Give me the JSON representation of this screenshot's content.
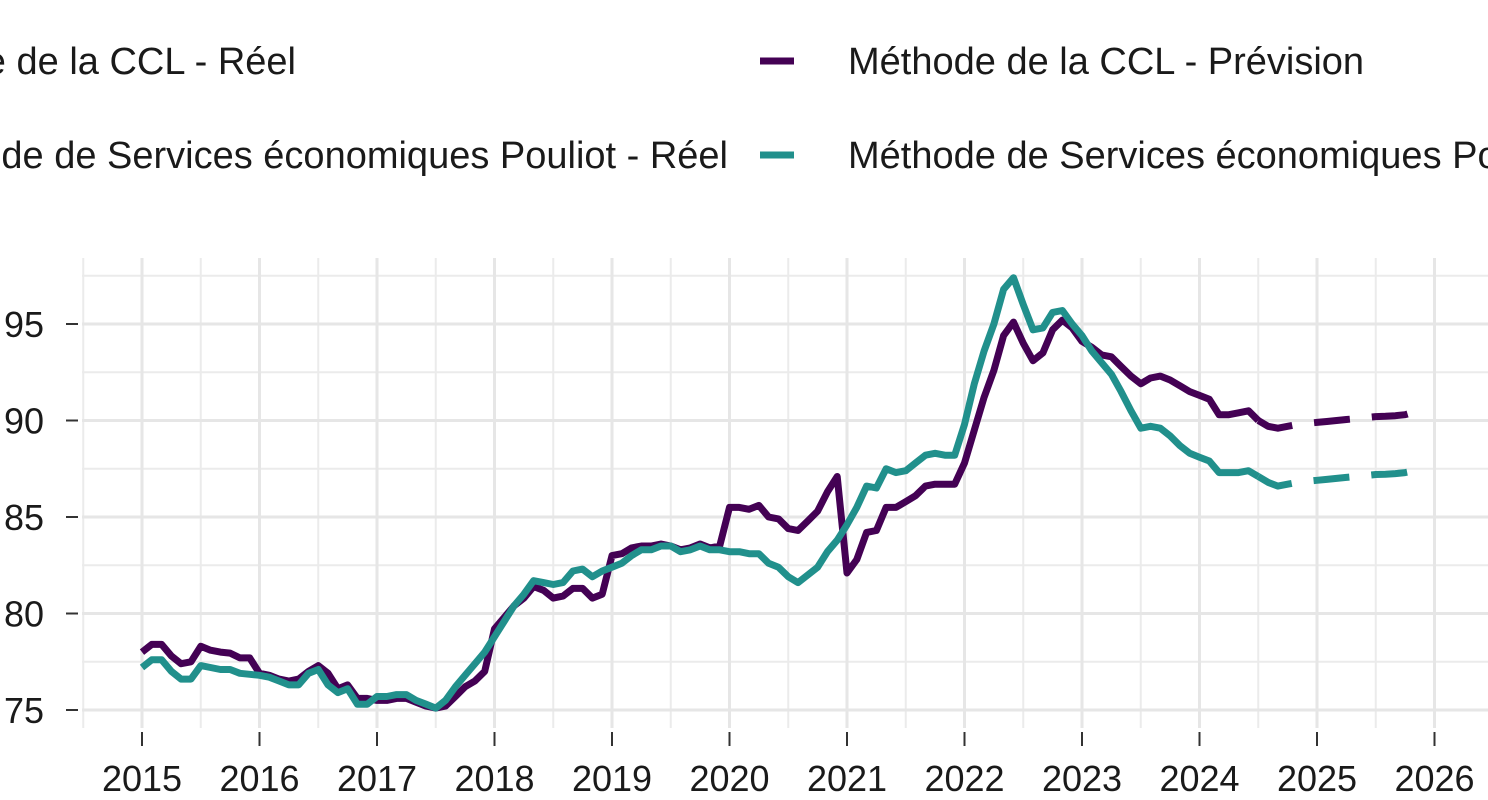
{
  "chart_data": {
    "type": "line",
    "title": "",
    "xlabel": "",
    "ylabel": "",
    "xlim": [
      2014.4,
      2026.4
    ],
    "ylim": [
      74.2,
      98.5
    ],
    "x_ticks": [
      2015,
      2016,
      2017,
      2018,
      2019,
      2020,
      2021,
      2022,
      2023,
      2024,
      2025,
      2026
    ],
    "x_tick_labels": [
      "2015",
      "2016",
      "2017",
      "2018",
      "2019",
      "2020",
      "2021",
      "2022",
      "2023",
      "2024",
      "2025",
      "2026"
    ],
    "y_ticks": [
      75,
      80,
      85,
      90,
      95
    ],
    "y_tick_labels": [
      "75",
      "80",
      "85",
      "90",
      "95"
    ],
    "grid": true,
    "legend_position": "top",
    "legend": [
      {
        "label": "Méthode de la CCL - Réel",
        "series": "ccl_reel"
      },
      {
        "label": "Méthode de la CCL - Prévision",
        "series": "ccl_prev"
      },
      {
        "label": "Méthode de Services économiques Pouliot - Réel",
        "series": "sep_reel"
      },
      {
        "label": "Méthode de Services économiques Pouliot - Prévision",
        "series": "sep_prev"
      }
    ],
    "series": [
      {
        "id": "ccl_reel",
        "name": "Méthode de la CCL - Réel",
        "color": "#440154",
        "dash": false,
        "points": [
          [
            2015.0,
            78.0
          ],
          [
            2015.083,
            78.4
          ],
          [
            2015.167,
            78.4
          ],
          [
            2015.25,
            77.8
          ],
          [
            2015.333,
            77.4
          ],
          [
            2015.417,
            77.5
          ],
          [
            2015.5,
            78.3
          ],
          [
            2015.583,
            78.1
          ],
          [
            2015.667,
            78.0
          ],
          [
            2015.75,
            77.95
          ],
          [
            2015.833,
            77.7
          ],
          [
            2015.917,
            77.7
          ],
          [
            2016.0,
            76.9
          ],
          [
            2016.083,
            76.8
          ],
          [
            2016.167,
            76.6
          ],
          [
            2016.25,
            76.5
          ],
          [
            2016.333,
            76.6
          ],
          [
            2016.417,
            77.0
          ],
          [
            2016.5,
            77.3
          ],
          [
            2016.583,
            76.9
          ],
          [
            2016.667,
            76.1
          ],
          [
            2016.75,
            76.3
          ],
          [
            2016.833,
            75.6
          ],
          [
            2016.917,
            75.6
          ],
          [
            2017.0,
            75.5
          ],
          [
            2017.083,
            75.5
          ],
          [
            2017.167,
            75.6
          ],
          [
            2017.25,
            75.6
          ],
          [
            2017.333,
            75.4
          ],
          [
            2017.417,
            75.2
          ],
          [
            2017.5,
            75.1
          ],
          [
            2017.583,
            75.2
          ],
          [
            2017.667,
            75.7
          ],
          [
            2017.75,
            76.2
          ],
          [
            2017.833,
            76.5
          ],
          [
            2017.917,
            77.0
          ],
          [
            2018.0,
            79.2
          ],
          [
            2018.083,
            79.8
          ],
          [
            2018.167,
            80.4
          ],
          [
            2018.25,
            80.8
          ],
          [
            2018.333,
            81.4
          ],
          [
            2018.417,
            81.2
          ],
          [
            2018.5,
            80.8
          ],
          [
            2018.583,
            80.9
          ],
          [
            2018.667,
            81.3
          ],
          [
            2018.75,
            81.3
          ],
          [
            2018.833,
            80.8
          ],
          [
            2018.917,
            81.0
          ],
          [
            2019.0,
            83.0
          ],
          [
            2019.083,
            83.1
          ],
          [
            2019.167,
            83.4
          ],
          [
            2019.25,
            83.5
          ],
          [
            2019.333,
            83.5
          ],
          [
            2019.417,
            83.6
          ],
          [
            2019.5,
            83.5
          ],
          [
            2019.583,
            83.3
          ],
          [
            2019.667,
            83.4
          ],
          [
            2019.75,
            83.6
          ],
          [
            2019.833,
            83.4
          ],
          [
            2019.917,
            83.5
          ],
          [
            2020.0,
            85.5
          ],
          [
            2020.083,
            85.5
          ],
          [
            2020.167,
            85.4
          ],
          [
            2020.25,
            85.6
          ],
          [
            2020.333,
            85.0
          ],
          [
            2020.417,
            84.9
          ],
          [
            2020.5,
            84.4
          ],
          [
            2020.583,
            84.3
          ],
          [
            2020.667,
            84.8
          ],
          [
            2020.75,
            85.3
          ],
          [
            2020.833,
            86.3
          ],
          [
            2020.917,
            87.1
          ],
          [
            2021.0,
            82.1
          ],
          [
            2021.083,
            82.8
          ],
          [
            2021.167,
            84.2
          ],
          [
            2021.25,
            84.3
          ],
          [
            2021.333,
            85.5
          ],
          [
            2021.417,
            85.5
          ],
          [
            2021.5,
            85.8
          ],
          [
            2021.583,
            86.1
          ],
          [
            2021.667,
            86.6
          ],
          [
            2021.75,
            86.7
          ],
          [
            2021.833,
            86.7
          ],
          [
            2021.917,
            86.7
          ],
          [
            2022.0,
            87.8
          ],
          [
            2022.083,
            89.5
          ],
          [
            2022.167,
            91.2
          ],
          [
            2022.25,
            92.6
          ],
          [
            2022.333,
            94.4
          ],
          [
            2022.417,
            95.1
          ],
          [
            2022.5,
            94.0
          ],
          [
            2022.583,
            93.1
          ],
          [
            2022.667,
            93.5
          ],
          [
            2022.75,
            94.7
          ],
          [
            2022.833,
            95.2
          ],
          [
            2022.917,
            94.8
          ],
          [
            2023.0,
            94.1
          ],
          [
            2023.083,
            93.8
          ],
          [
            2023.167,
            93.4
          ],
          [
            2023.25,
            93.3
          ],
          [
            2023.333,
            92.8
          ],
          [
            2023.417,
            92.3
          ],
          [
            2023.5,
            91.9
          ],
          [
            2023.583,
            92.2
          ],
          [
            2023.667,
            92.3
          ],
          [
            2023.75,
            92.1
          ],
          [
            2023.833,
            91.8
          ],
          [
            2023.917,
            91.5
          ],
          [
            2024.0,
            91.3
          ],
          [
            2024.083,
            91.1
          ],
          [
            2024.167,
            90.3
          ],
          [
            2024.25,
            90.3
          ],
          [
            2024.333,
            90.4
          ],
          [
            2024.417,
            90.5
          ],
          [
            2024.5,
            90.0
          ]
        ]
      },
      {
        "id": "ccl_prev",
        "name": "Méthode de la CCL - Prévision",
        "color": "#440154",
        "dash": true,
        "points": [
          [
            2024.5,
            90.0
          ],
          [
            2024.583,
            89.7
          ],
          [
            2024.667,
            89.6
          ],
          [
            2024.75,
            89.7
          ],
          [
            2024.833,
            89.8
          ],
          [
            2024.917,
            89.85
          ],
          [
            2025.0,
            89.9
          ],
          [
            2025.083,
            89.95
          ],
          [
            2025.167,
            90.0
          ],
          [
            2025.25,
            90.05
          ],
          [
            2025.333,
            90.1
          ],
          [
            2025.417,
            90.15
          ],
          [
            2025.5,
            90.2
          ],
          [
            2025.583,
            90.22
          ],
          [
            2025.667,
            90.25
          ],
          [
            2025.75,
            90.3
          ],
          [
            2025.833,
            90.45
          ],
          [
            2025.917,
            90.6
          ]
        ]
      },
      {
        "id": "sep_reel",
        "name": "Méthode de Services économiques Pouliot - Réel",
        "color": "#21908C",
        "dash": false,
        "points": [
          [
            2015.0,
            77.2
          ],
          [
            2015.083,
            77.6
          ],
          [
            2015.167,
            77.6
          ],
          [
            2015.25,
            77.0
          ],
          [
            2015.333,
            76.6
          ],
          [
            2015.417,
            76.6
          ],
          [
            2015.5,
            77.3
          ],
          [
            2015.583,
            77.2
          ],
          [
            2015.667,
            77.1
          ],
          [
            2015.75,
            77.1
          ],
          [
            2015.833,
            76.9
          ],
          [
            2015.917,
            76.85
          ],
          [
            2016.0,
            76.8
          ],
          [
            2016.083,
            76.7
          ],
          [
            2016.167,
            76.5
          ],
          [
            2016.25,
            76.3
          ],
          [
            2016.333,
            76.3
          ],
          [
            2016.417,
            76.9
          ],
          [
            2016.5,
            77.1
          ],
          [
            2016.583,
            76.3
          ],
          [
            2016.667,
            75.9
          ],
          [
            2016.75,
            76.1
          ],
          [
            2016.833,
            75.3
          ],
          [
            2016.917,
            75.3
          ],
          [
            2017.0,
            75.7
          ],
          [
            2017.083,
            75.7
          ],
          [
            2017.167,
            75.8
          ],
          [
            2017.25,
            75.8
          ],
          [
            2017.333,
            75.5
          ],
          [
            2017.417,
            75.3
          ],
          [
            2017.5,
            75.1
          ],
          [
            2017.583,
            75.5
          ],
          [
            2017.667,
            76.2
          ],
          [
            2017.75,
            76.8
          ],
          [
            2017.833,
            77.4
          ],
          [
            2017.917,
            78.0
          ],
          [
            2018.0,
            78.8
          ],
          [
            2018.083,
            79.6
          ],
          [
            2018.167,
            80.4
          ],
          [
            2018.25,
            81.0
          ],
          [
            2018.333,
            81.7
          ],
          [
            2018.417,
            81.6
          ],
          [
            2018.5,
            81.5
          ],
          [
            2018.583,
            81.6
          ],
          [
            2018.667,
            82.2
          ],
          [
            2018.75,
            82.3
          ],
          [
            2018.833,
            81.9
          ],
          [
            2018.917,
            82.2
          ],
          [
            2019.0,
            82.4
          ],
          [
            2019.083,
            82.6
          ],
          [
            2019.167,
            83.0
          ],
          [
            2019.25,
            83.3
          ],
          [
            2019.333,
            83.3
          ],
          [
            2019.417,
            83.5
          ],
          [
            2019.5,
            83.5
          ],
          [
            2019.583,
            83.2
          ],
          [
            2019.667,
            83.3
          ],
          [
            2019.75,
            83.5
          ],
          [
            2019.833,
            83.3
          ],
          [
            2019.917,
            83.3
          ],
          [
            2020.0,
            83.2
          ],
          [
            2020.083,
            83.2
          ],
          [
            2020.167,
            83.1
          ],
          [
            2020.25,
            83.1
          ],
          [
            2020.333,
            82.6
          ],
          [
            2020.417,
            82.4
          ],
          [
            2020.5,
            81.9
          ],
          [
            2020.583,
            81.6
          ],
          [
            2020.667,
            82.0
          ],
          [
            2020.75,
            82.4
          ],
          [
            2020.833,
            83.2
          ],
          [
            2020.917,
            83.8
          ],
          [
            2021.0,
            84.6
          ],
          [
            2021.083,
            85.5
          ],
          [
            2021.167,
            86.6
          ],
          [
            2021.25,
            86.5
          ],
          [
            2021.333,
            87.5
          ],
          [
            2021.417,
            87.3
          ],
          [
            2021.5,
            87.4
          ],
          [
            2021.583,
            87.8
          ],
          [
            2021.667,
            88.2
          ],
          [
            2021.75,
            88.3
          ],
          [
            2021.833,
            88.2
          ],
          [
            2021.917,
            88.2
          ],
          [
            2022.0,
            89.8
          ],
          [
            2022.083,
            91.9
          ],
          [
            2022.167,
            93.6
          ],
          [
            2022.25,
            95.0
          ],
          [
            2022.333,
            96.8
          ],
          [
            2022.417,
            97.4
          ],
          [
            2022.5,
            96.0
          ],
          [
            2022.583,
            94.7
          ],
          [
            2022.667,
            94.8
          ],
          [
            2022.75,
            95.6
          ],
          [
            2022.833,
            95.7
          ],
          [
            2022.917,
            95.0
          ],
          [
            2023.0,
            94.4
          ],
          [
            2023.083,
            93.6
          ],
          [
            2023.167,
            93.0
          ],
          [
            2023.25,
            92.4
          ],
          [
            2023.333,
            91.5
          ],
          [
            2023.417,
            90.5
          ],
          [
            2023.5,
            89.6
          ],
          [
            2023.583,
            89.7
          ],
          [
            2023.667,
            89.6
          ],
          [
            2023.75,
            89.2
          ],
          [
            2023.833,
            88.7
          ],
          [
            2023.917,
            88.3
          ],
          [
            2024.0,
            88.1
          ],
          [
            2024.083,
            87.9
          ],
          [
            2024.167,
            87.3
          ],
          [
            2024.25,
            87.3
          ],
          [
            2024.333,
            87.3
          ],
          [
            2024.417,
            87.4
          ],
          [
            2024.5,
            87.1
          ]
        ]
      },
      {
        "id": "sep_prev",
        "name": "Méthode de Services économiques Pouliot - Prévision",
        "color": "#21908C",
        "dash": true,
        "points": [
          [
            2024.5,
            87.1
          ],
          [
            2024.583,
            86.8
          ],
          [
            2024.667,
            86.6
          ],
          [
            2024.75,
            86.7
          ],
          [
            2024.833,
            86.8
          ],
          [
            2024.917,
            86.85
          ],
          [
            2025.0,
            86.9
          ],
          [
            2025.083,
            86.95
          ],
          [
            2025.167,
            87.0
          ],
          [
            2025.25,
            87.05
          ],
          [
            2025.333,
            87.1
          ],
          [
            2025.417,
            87.15
          ],
          [
            2025.5,
            87.2
          ],
          [
            2025.583,
            87.22
          ],
          [
            2025.667,
            87.25
          ],
          [
            2025.75,
            87.3
          ],
          [
            2025.833,
            87.4
          ],
          [
            2025.917,
            87.5
          ]
        ]
      }
    ]
  }
}
